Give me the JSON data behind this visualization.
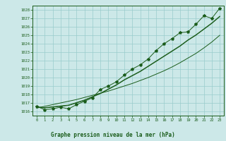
{
  "xlabel": "Graphe pression niveau de la mer (hPa)",
  "bg_color": "#cce8e8",
  "grid_color": "#99cccc",
  "line_color": "#1a5c1a",
  "ylim": [
    1015.5,
    1028.5
  ],
  "yticks": [
    1016,
    1017,
    1018,
    1019,
    1020,
    1021,
    1022,
    1023,
    1024,
    1025,
    1026,
    1027,
    1028
  ],
  "xticks": [
    0,
    1,
    2,
    3,
    4,
    5,
    6,
    7,
    8,
    9,
    10,
    11,
    12,
    13,
    14,
    15,
    16,
    17,
    18,
    19,
    20,
    21,
    22,
    23
  ],
  "data_main": [
    1016.6,
    1016.2,
    1016.3,
    1016.5,
    1016.3,
    1016.8,
    1017.2,
    1017.6,
    1018.6,
    1019.0,
    1019.5,
    1020.3,
    1021.0,
    1021.5,
    1022.2,
    1023.2,
    1024.0,
    1024.6,
    1025.3,
    1025.4,
    1026.3,
    1027.3,
    1027.0,
    1028.2
  ],
  "data_smooth1": [
    1016.5,
    1016.4,
    1016.5,
    1016.6,
    1016.7,
    1017.0,
    1017.3,
    1017.7,
    1018.1,
    1018.6,
    1019.1,
    1019.7,
    1020.2,
    1020.7,
    1021.3,
    1021.9,
    1022.5,
    1023.1,
    1023.7,
    1024.4,
    1025.0,
    1025.7,
    1026.4,
    1027.2
  ],
  "data_smooth2": [
    1016.55,
    1016.45,
    1016.55,
    1016.65,
    1016.75,
    1017.05,
    1017.35,
    1017.75,
    1018.15,
    1018.65,
    1019.15,
    1019.75,
    1020.25,
    1020.75,
    1021.35,
    1021.95,
    1022.55,
    1023.15,
    1023.75,
    1024.45,
    1025.05,
    1025.75,
    1026.45,
    1027.25
  ],
  "data_linear": [
    1016.4,
    1016.6,
    1016.8,
    1017.0,
    1017.2,
    1017.4,
    1017.65,
    1017.9,
    1018.15,
    1018.4,
    1018.7,
    1019.0,
    1019.3,
    1019.65,
    1020.0,
    1020.4,
    1020.8,
    1021.25,
    1021.75,
    1022.3,
    1022.85,
    1023.5,
    1024.2,
    1025.0
  ]
}
